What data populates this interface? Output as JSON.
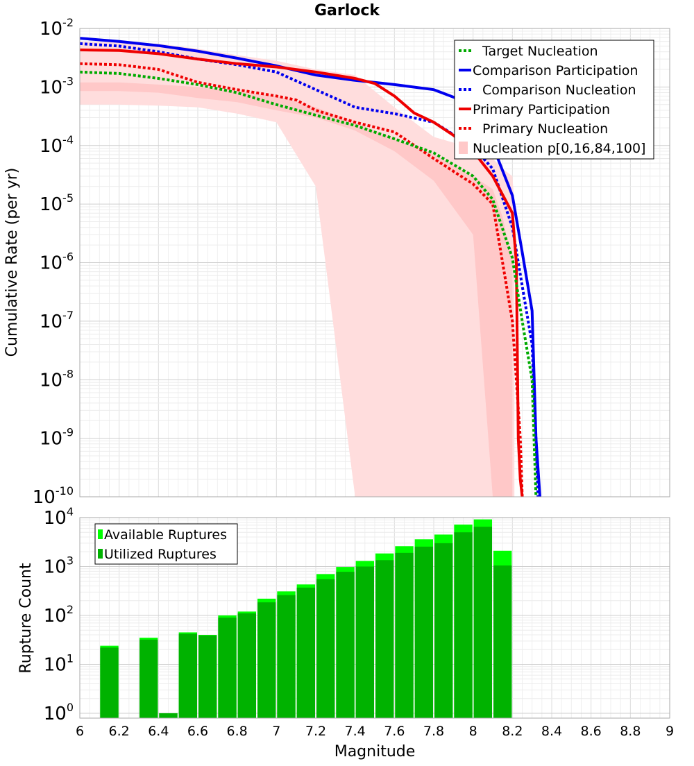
{
  "chart_data": [
    {
      "type": "line",
      "title": "Garlock",
      "xlabel": "",
      "ylabel": "Cumulative Rate (per yr)",
      "xlim": [
        6,
        9
      ],
      "ylim_log10": [
        -10,
        -2
      ],
      "ytick_exponents": [
        "-2",
        "-3",
        "-4",
        "-5",
        "-6",
        "-7",
        "-8",
        "-9",
        "-10"
      ],
      "legend_position": "top-right",
      "legend": [
        {
          "label": "Target Nucleation",
          "color": "#00aa00",
          "dash": true
        },
        {
          "label": "Comparison Participation",
          "color": "#0000ee",
          "dash": false
        },
        {
          "label": "Comparison Nucleation",
          "color": "#0000ee",
          "dash": true
        },
        {
          "label": "Primary Participation",
          "color": "#ee0000",
          "dash": false
        },
        {
          "label": "Primary Nucleation",
          "color": "#ee0000",
          "dash": true
        },
        {
          "label": "Nucleation p[0,16,84,100]",
          "color": "#ffc8c8",
          "band": true
        }
      ],
      "series": [
        {
          "name": "Comparison Participation",
          "color": "#0000ee",
          "dash": false,
          "x": [
            6.0,
            6.2,
            6.4,
            6.6,
            6.8,
            7.0,
            7.2,
            7.4,
            7.6,
            7.8,
            8.0,
            8.1,
            8.2,
            8.25,
            8.3,
            8.32,
            8.34
          ],
          "y": [
            0.0068,
            0.006,
            0.0051,
            0.0041,
            0.0031,
            0.0023,
            0.0016,
            0.0013,
            0.0011,
            0.0009,
            0.0005,
            0.0001,
            1.4e-05,
            1.5e-06,
            1.5e-07,
            1e-09,
            1e-10
          ]
        },
        {
          "name": "Comparison Nucleation",
          "color": "#0000ee",
          "dash": true,
          "x": [
            6.0,
            6.2,
            6.4,
            6.6,
            6.8,
            7.0,
            7.2,
            7.4,
            7.6,
            7.8,
            8.0,
            8.1,
            8.2,
            8.25,
            8.3,
            8.32,
            8.33
          ],
          "y": [
            0.0055,
            0.005,
            0.004,
            0.003,
            0.0024,
            0.0018,
            0.0009,
            0.00045,
            0.00035,
            0.00025,
            9.5e-05,
            4e-05,
            4e-06,
            4e-07,
            4e-08,
            1e-09,
            1e-10
          ]
        },
        {
          "name": "Primary Participation",
          "color": "#ee0000",
          "dash": false,
          "x": [
            6.0,
            6.2,
            6.4,
            6.6,
            6.8,
            7.0,
            7.2,
            7.4,
            7.5,
            7.6,
            7.7,
            7.8,
            7.9,
            8.0,
            8.1,
            8.2,
            8.22,
            8.23,
            8.24,
            8.25
          ],
          "y": [
            0.0043,
            0.0042,
            0.0037,
            0.003,
            0.0025,
            0.0022,
            0.0018,
            0.0014,
            0.00115,
            0.0007,
            0.00036,
            0.00025,
            0.00015,
            8e-05,
            3e-05,
            7e-06,
            1e-06,
            1e-09,
            2e-10,
            1e-10
          ]
        },
        {
          "name": "Primary Nucleation",
          "color": "#ee0000",
          "dash": true,
          "x": [
            6.0,
            6.2,
            6.4,
            6.6,
            6.8,
            7.0,
            7.1,
            7.2,
            7.4,
            7.6,
            7.8,
            8.0,
            8.1,
            8.15,
            8.2,
            8.22,
            8.24,
            8.25
          ],
          "y": [
            0.0025,
            0.0024,
            0.002,
            0.0012,
            0.0009,
            0.0007,
            0.0006,
            0.0004,
            0.00025,
            0.00017,
            6e-05,
            2.2e-05,
            1e-05,
            1e-06,
            1e-07,
            1e-08,
            1e-09,
            1e-10
          ]
        },
        {
          "name": "Target Nucleation",
          "color": "#00aa00",
          "dash": true,
          "x": [
            6.0,
            6.2,
            6.4,
            6.6,
            6.8,
            7.0,
            7.2,
            7.4,
            7.6,
            7.8,
            8.0,
            8.1,
            8.2,
            8.25,
            8.3,
            8.32
          ],
          "y": [
            0.0018,
            0.0017,
            0.0014,
            0.0011,
            0.0008,
            0.0005,
            0.00033,
            0.00022,
            0.00013,
            7.5e-05,
            3e-05,
            1.2e-05,
            1.2e-06,
            1e-07,
            1e-08,
            1e-10
          ]
        }
      ],
      "bands": [
        {
          "name": "p0-100",
          "color": "#ffdddd",
          "x": [
            6.0,
            6.2,
            6.4,
            6.6,
            6.8,
            7.0,
            7.2,
            7.4,
            7.6,
            7.8,
            8.0,
            8.1,
            8.15,
            8.2,
            8.21
          ],
          "upper": [
            0.006,
            0.0058,
            0.0055,
            0.0045,
            0.0035,
            0.0028,
            0.002,
            0.0016,
            0.00045,
            0.00014,
            9e-05,
            6e-05,
            4e-05,
            3e-05,
            1e-05
          ],
          "lower": [
            0.0005,
            0.0005,
            0.00048,
            0.00045,
            0.00035,
            0.00025,
            2e-05,
            1e-10,
            1e-10,
            1e-10,
            1e-10,
            1e-10,
            1e-10,
            1e-10,
            1e-10
          ]
        },
        {
          "name": "p16-84",
          "color": "#ffc8c8",
          "x": [
            6.0,
            6.2,
            6.4,
            6.6,
            6.8,
            7.0,
            7.2,
            7.4,
            7.6,
            7.8,
            8.0,
            8.1,
            8.15,
            8.2
          ],
          "upper": [
            0.0012,
            0.0012,
            0.0011,
            0.001,
            0.00085,
            0.0007,
            0.00045,
            0.00025,
            0.00013,
            7e-05,
            3e-05,
            1.8e-05,
            6e-06,
            1e-06
          ],
          "lower": [
            0.00085,
            0.00085,
            0.0008,
            0.00065,
            0.00055,
            0.0004,
            0.0003,
            0.00018,
            8e-05,
            2.5e-05,
            3e-06,
            1e-10,
            1e-10,
            1e-10
          ]
        }
      ]
    },
    {
      "type": "bar",
      "title": "",
      "xlabel": "Magnitude",
      "ylabel": "Rupture Count",
      "xlim": [
        6,
        9
      ],
      "ylim_log10": [
        -0.1,
        4
      ],
      "ytick_exponents": [
        "0",
        "1",
        "2",
        "3",
        "4"
      ],
      "xticks": [
        "6",
        "6.2",
        "6.4",
        "6.6",
        "6.8",
        "7",
        "7.2",
        "7.4",
        "7.6",
        "7.8",
        "8",
        "8.2",
        "8.4",
        "8.6",
        "8.8",
        "9"
      ],
      "legend_position": "top-left",
      "legend": [
        {
          "label": "Available Ruptures",
          "color": "#00ff00"
        },
        {
          "label": "Utilized Ruptures",
          "color": "#00b200"
        }
      ],
      "bin_width": 0.1,
      "bins": [
        6.15,
        6.35,
        6.45,
        6.55,
        6.65,
        6.75,
        6.85,
        6.95,
        7.05,
        7.15,
        7.25,
        7.35,
        7.45,
        7.55,
        7.65,
        7.75,
        7.85,
        7.95,
        8.05,
        8.15
      ],
      "series": [
        {
          "name": "Available Ruptures",
          "color": "#00ff00",
          "values": [
            24,
            35,
            1,
            45,
            40,
            100,
            120,
            220,
            310,
            430,
            700,
            980,
            1300,
            1850,
            2600,
            3600,
            4500,
            7200,
            9200,
            2100
          ]
        },
        {
          "name": "Utilized Ruptures",
          "color": "#00b200",
          "values": [
            22,
            32,
            1,
            42,
            39,
            90,
            110,
            185,
            260,
            370,
            550,
            780,
            1000,
            1350,
            1900,
            2550,
            3000,
            5000,
            6500,
            1050
          ]
        }
      ]
    }
  ]
}
